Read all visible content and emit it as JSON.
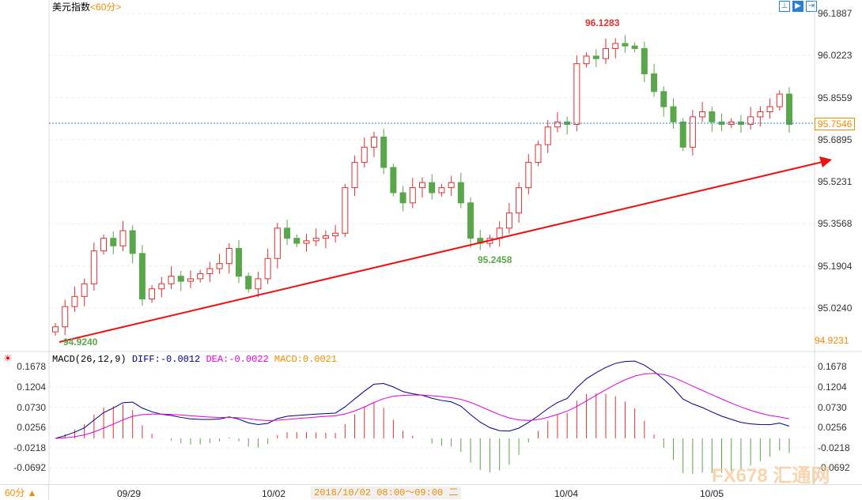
{
  "header": {
    "title": "美元指数",
    "timeframe": "<60分>"
  },
  "toolbar": {
    "icons": [
      "chart-type-icon",
      "play-icon",
      "exit-icon"
    ]
  },
  "price_axis": {
    "ticks": [
      "96.1887",
      "96.0223",
      "95.8559",
      "95.6895",
      "95.5231",
      "95.3568",
      "95.1904",
      "95.0240"
    ],
    "current": "95.7546",
    "low": "94.9231"
  },
  "annotations": {
    "high": "96.1283",
    "mid_low": "95.2458",
    "low": "94.9240"
  },
  "macd": {
    "label": "MACD(26,12,9)",
    "diff": "DIFF:-0.0012",
    "dea": "DEA:-0.0022",
    "macd": "MACD:0.0021",
    "ticks": [
      "0.1678",
      "0.1204",
      "0.0730",
      "0.0256",
      "-0.0218",
      "-0.0692"
    ]
  },
  "bottom": {
    "timeframe": "60分 ▲",
    "dates": [
      "09/29",
      "10/02",
      "10/04",
      "10/05"
    ],
    "crosshair_time": "2018/10/02 08:00～09:00 二"
  },
  "watermark": "FX678 汇通网",
  "colors": {
    "up": "#e03030",
    "down": "#5aa64a",
    "diff": "#000080",
    "dea": "#e000e0",
    "macd": "#f08c00"
  },
  "chart_data": {
    "type": "candlestick",
    "price_range": [
      94.9231,
      96.1887
    ],
    "closes": [
      94.95,
      95.03,
      95.07,
      95.12,
      95.25,
      95.3,
      95.27,
      95.33,
      95.24,
      95.06,
      95.1,
      95.12,
      95.15,
      95.13,
      95.14,
      95.16,
      95.18,
      95.2,
      95.26,
      95.15,
      95.1,
      95.14,
      95.22,
      95.34,
      95.3,
      95.28,
      95.29,
      95.3,
      95.31,
      95.32,
      95.5,
      95.6,
      95.66,
      95.7,
      95.58,
      95.48,
      95.44,
      95.5,
      95.52,
      95.48,
      95.5,
      95.52,
      95.44,
      95.3,
      95.28,
      95.3,
      95.34,
      95.4,
      95.5,
      95.6,
      95.67,
      95.74,
      95.76,
      95.75,
      95.99,
      96.02,
      96.01,
      96.05,
      96.07,
      96.06,
      96.05,
      95.95,
      95.88,
      95.82,
      95.76,
      95.66,
      95.78,
      95.8,
      95.76,
      95.75,
      95.76,
      95.75,
      95.78,
      95.8,
      95.82,
      95.87,
      95.75
    ]
  }
}
